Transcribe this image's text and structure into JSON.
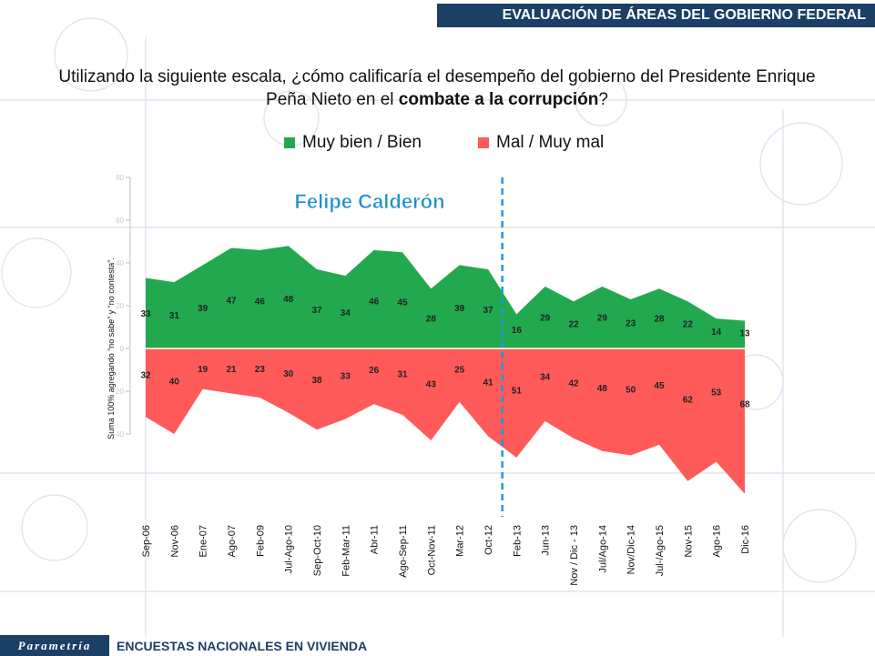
{
  "header": {
    "title": "EVALUACIÓN DE ÁREAS DEL GOBIERNO FEDERAL"
  },
  "question": {
    "prefix": "Utilizando la siguiente escala, ¿cómo calificaría el desempeño del gobierno del Presidente Enrique Peña Nieto en el ",
    "bold": "combate a la corrupción",
    "suffix": "?"
  },
  "footer": {
    "brand": "Parametría",
    "text": "ENCUESTAS NACIONALES EN VIVIENDA"
  },
  "colors": {
    "positive": "#22a94f",
    "negative": "#ff5a5a",
    "divider": "#1e9ad6",
    "header": "#1c3f66"
  },
  "chart_data": {
    "type": "area",
    "annotation": "Felipe Calderón",
    "ylabel": "Suma 100% agregando “no sabe” y “no contesta”.",
    "ylim": [
      -40,
      80
    ],
    "yticks": [
      -40,
      -20,
      0,
      20,
      40,
      60,
      80
    ],
    "categories": [
      "Sep-06",
      "Nov-06",
      "Ene-07",
      "Ago-07",
      "Feb-09",
      "Jul-Ago-10",
      "Sep-Oct-10",
      "Feb-Mar-11",
      "Abr-11",
      "Ago-Sep-11",
      "Oct-Nov-11",
      "Mar-12",
      "Oct-12",
      "Feb-13",
      "Jun-13",
      "Nov / Dic - 13",
      "Jul/Ago-14",
      "Nov/Dic-14",
      "Jul-/Ago-15",
      "Nov-15",
      "Ago-16",
      "Dic-16"
    ],
    "divider_after_index": 12,
    "series": [
      {
        "name": "Muy bien / Bien",
        "values": [
          33,
          31,
          39,
          47,
          46,
          48,
          37,
          34,
          46,
          45,
          28,
          39,
          37,
          16,
          29,
          22,
          29,
          23,
          28,
          22,
          14,
          13
        ]
      },
      {
        "name": "Mal / Muy mal",
        "values": [
          32,
          40,
          19,
          21,
          23,
          30,
          38,
          33,
          26,
          31,
          43,
          25,
          41,
          51,
          34,
          42,
          48,
          50,
          45,
          62,
          53,
          68
        ]
      }
    ]
  }
}
